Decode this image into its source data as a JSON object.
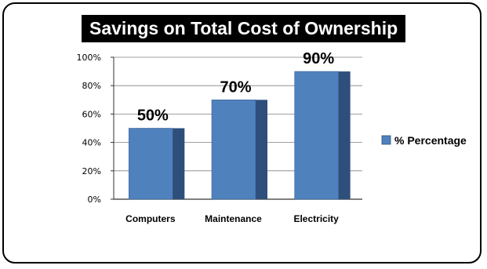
{
  "colors": {
    "bar_front": "#4F81BD",
    "bar_side": "#2E4F7C",
    "plot_bg": "#FFFFFF",
    "title_bg": "#000000",
    "title_fg": "#FFFFFF"
  },
  "chart_data": {
    "type": "bar",
    "title": "Savings on Total Cost of Ownership",
    "categories": [
      "Computers",
      "Maintenance",
      "Electricity"
    ],
    "series": [
      {
        "name": "% Percentage",
        "values": [
          50,
          70,
          90
        ],
        "data_labels": [
          "50%",
          "70%",
          "90%"
        ]
      }
    ],
    "yticks": [
      "0%",
      "20%",
      "40%",
      "60%",
      "80%",
      "100%"
    ],
    "ylim": [
      0,
      100
    ],
    "xlabel": "",
    "ylabel": "",
    "grid": true,
    "legend": "right"
  }
}
